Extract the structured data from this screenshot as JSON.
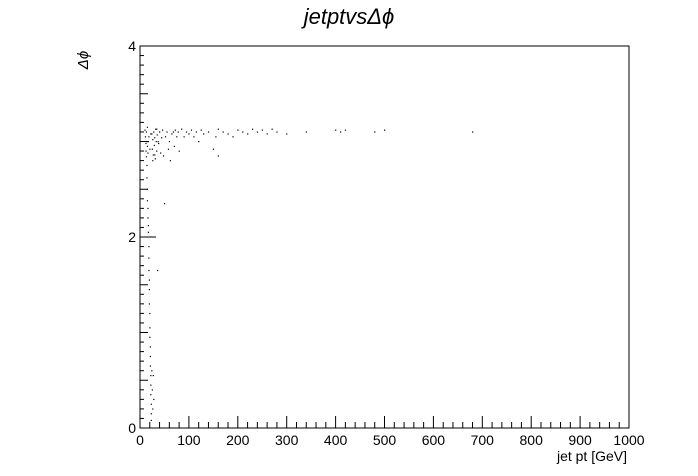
{
  "chart_data": {
    "type": "scatter",
    "title": "jetptvsΔϕ",
    "xlabel": "jet pt [GeV]",
    "ylabel": "Δϕ",
    "xlim": [
      0,
      1000
    ],
    "ylim": [
      0,
      4
    ],
    "x_ticks": [
      "0",
      "100",
      "200",
      "300",
      "400",
      "500",
      "600",
      "700",
      "800",
      "900",
      "1000"
    ],
    "y_ticks": [
      "0",
      "2",
      "4"
    ],
    "grid": false,
    "legend": "none",
    "series": [
      {
        "points": [
          [
            10,
            3.12
          ],
          [
            11,
            3.05
          ],
          [
            12,
            2.98
          ],
          [
            12,
            2.9
          ],
          [
            13,
            3.1
          ],
          [
            13,
            2.84
          ],
          [
            14,
            2.75
          ],
          [
            14,
            2.62
          ],
          [
            15,
            3.15
          ],
          [
            15,
            2.95
          ],
          [
            15,
            2.5
          ],
          [
            15,
            2.38
          ],
          [
            16,
            2.3
          ],
          [
            16,
            2.2
          ],
          [
            17,
            2.12
          ],
          [
            17,
            3.0
          ],
          [
            17,
            2.05
          ],
          [
            18,
            1.9
          ],
          [
            18,
            1.78
          ],
          [
            18,
            1.65
          ],
          [
            19,
            1.55
          ],
          [
            19,
            1.45
          ],
          [
            19,
            1.3
          ],
          [
            20,
            1.2
          ],
          [
            20,
            1.05
          ],
          [
            20,
            0.95
          ],
          [
            21,
            0.85
          ],
          [
            21,
            0.75
          ],
          [
            21,
            0.65
          ],
          [
            22,
            0.55
          ],
          [
            22,
            0.45
          ],
          [
            22,
            0.35
          ],
          [
            23,
            0.25
          ],
          [
            23,
            0.15
          ],
          [
            23,
            0.08
          ],
          [
            24,
            0.6
          ],
          [
            25,
            0.4
          ],
          [
            26,
            0.2
          ],
          [
            27,
            0.55
          ],
          [
            28,
            0.3
          ],
          [
            24,
            3.08
          ],
          [
            25,
            2.92
          ],
          [
            26,
            3.02
          ],
          [
            27,
            2.86
          ],
          [
            28,
            3.1
          ],
          [
            29,
            2.96
          ],
          [
            30,
            3.04
          ],
          [
            31,
            2.82
          ],
          [
            32,
            3.13
          ],
          [
            33,
            3.0
          ],
          [
            34,
            2.9
          ],
          [
            35,
            3.07
          ],
          [
            36,
            1.65
          ],
          [
            37,
            3.0
          ],
          [
            38,
            2.98
          ],
          [
            40,
            3.1
          ],
          [
            42,
            2.88
          ],
          [
            44,
            3.04
          ],
          [
            46,
            3.12
          ],
          [
            48,
            2.85
          ],
          [
            50,
            2.35
          ],
          [
            52,
            3.05
          ],
          [
            55,
            3.1
          ],
          [
            58,
            2.92
          ],
          [
            60,
            3.0
          ],
          [
            62,
            2.8
          ],
          [
            65,
            3.08
          ],
          [
            68,
            3.1
          ],
          [
            70,
            2.95
          ],
          [
            72,
            3.12
          ],
          [
            75,
            3.05
          ],
          [
            78,
            3.1
          ],
          [
            80,
            2.9
          ],
          [
            85,
            3.13
          ],
          [
            90,
            3.05
          ],
          [
            95,
            3.1
          ],
          [
            100,
            3.08
          ],
          [
            105,
            3.12
          ],
          [
            110,
            3.05
          ],
          [
            115,
            3.1
          ],
          [
            120,
            3.0
          ],
          [
            125,
            3.12
          ],
          [
            130,
            3.08
          ],
          [
            140,
            3.1
          ],
          [
            150,
            2.92
          ],
          [
            155,
            3.05
          ],
          [
            160,
            3.13
          ],
          [
            160,
            2.85
          ],
          [
            170,
            3.1
          ],
          [
            180,
            3.08
          ],
          [
            190,
            3.05
          ],
          [
            200,
            3.12
          ],
          [
            210,
            3.1
          ],
          [
            220,
            3.08
          ],
          [
            230,
            3.13
          ],
          [
            240,
            3.1
          ],
          [
            250,
            3.12
          ],
          [
            260,
            3.08
          ],
          [
            270,
            3.13
          ],
          [
            280,
            3.1
          ],
          [
            300,
            3.08
          ],
          [
            340,
            3.1
          ],
          [
            400,
            3.12
          ],
          [
            410,
            3.1
          ],
          [
            420,
            3.12
          ],
          [
            480,
            3.1
          ],
          [
            500,
            3.12
          ],
          [
            680,
            3.1
          ],
          [
            14,
            3.0
          ],
          [
            16,
            2.88
          ],
          [
            18,
            3.05
          ],
          [
            20,
            2.92
          ],
          [
            22,
            3.08
          ],
          [
            26,
            2.8
          ],
          [
            30,
            2.86
          ],
          [
            34,
            3.13
          ]
        ]
      }
    ]
  }
}
